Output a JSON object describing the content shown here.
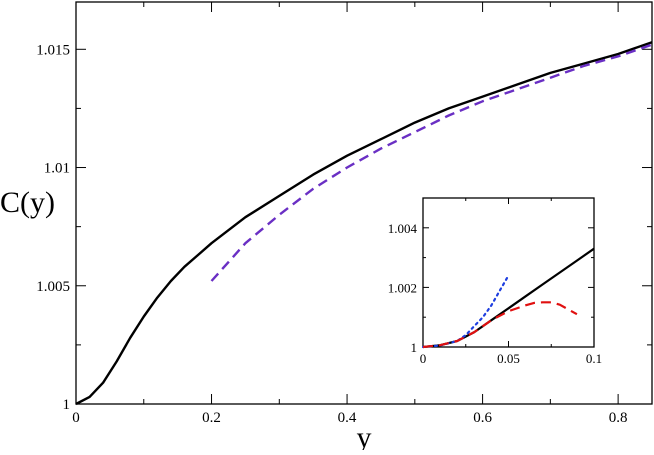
{
  "chart_data": [
    {
      "type": "line",
      "panel": "main",
      "xlabel": "y",
      "ylabel": "C(y)",
      "xlim": [
        0,
        0.85
      ],
      "ylim": [
        1,
        1.017
      ],
      "xticks": [
        0,
        0.2,
        0.4,
        0.6,
        0.8
      ],
      "xtick_labels": [
        "0",
        "0.2",
        "0.4",
        "0.6",
        "0.8"
      ],
      "yticks": [
        1,
        1.005,
        1.01,
        1.015
      ],
      "ytick_labels": [
        "1",
        "1.005",
        "1.01",
        "1.015"
      ],
      "grid": false,
      "series": [
        {
          "style": "solid",
          "color": "#000000",
          "x": [
            0,
            0.02,
            0.04,
            0.06,
            0.08,
            0.1,
            0.12,
            0.14,
            0.16,
            0.18,
            0.2,
            0.25,
            0.3,
            0.35,
            0.4,
            0.45,
            0.5,
            0.55,
            0.6,
            0.65,
            0.7,
            0.75,
            0.8,
            0.85
          ],
          "y": [
            1,
            1.0003,
            1.0009,
            1.0018,
            1.0028,
            1.0037,
            1.0045,
            1.0052,
            1.0058,
            1.0063,
            1.0068,
            1.0079,
            1.0088,
            1.0097,
            1.0105,
            1.0112,
            1.0119,
            1.0125,
            1.013,
            1.0135,
            1.014,
            1.0144,
            1.0148,
            1.0153
          ]
        },
        {
          "style": "dashed",
          "color": "#6a2fc4",
          "x": [
            0.2,
            0.25,
            0.3,
            0.35,
            0.4,
            0.45,
            0.5,
            0.55,
            0.6,
            0.65,
            0.7,
            0.75,
            0.8,
            0.85
          ],
          "y": [
            1.0052,
            1.0068,
            1.008,
            1.0091,
            1.01,
            1.0108,
            1.0115,
            1.0122,
            1.0128,
            1.0133,
            1.0138,
            1.0143,
            1.0147,
            1.0152
          ]
        }
      ]
    },
    {
      "type": "line",
      "panel": "inset",
      "xlim": [
        0,
        0.1
      ],
      "ylim": [
        1,
        1.005
      ],
      "xticks": [
        0,
        0.05,
        0.1
      ],
      "xtick_labels": [
        "0",
        "0.05",
        "0.1"
      ],
      "yticks": [
        1,
        1.002,
        1.004
      ],
      "ytick_labels": [
        "1",
        "1.002",
        "1.004"
      ],
      "grid": false,
      "series": [
        {
          "style": "solid",
          "color": "#000000",
          "x": [
            0,
            0.01,
            0.02,
            0.03,
            0.04,
            0.05,
            0.06,
            0.07,
            0.08,
            0.09,
            0.1
          ],
          "y": [
            1,
            1.00006,
            1.0002,
            1.0005,
            1.0009,
            1.0013,
            1.0017,
            1.0021,
            1.0025,
            1.0029,
            1.0033
          ]
        },
        {
          "style": "dotted",
          "color": "#1f3fe0",
          "x": [
            0,
            0.01,
            0.02,
            0.025,
            0.03,
            0.035,
            0.04,
            0.045,
            0.05
          ],
          "y": [
            1,
            1.00005,
            1.0002,
            1.0004,
            1.0007,
            1.001,
            1.0014,
            1.0019,
            1.0024
          ]
        },
        {
          "style": "dashed",
          "color": "#e01010",
          "x": [
            0,
            0.01,
            0.02,
            0.03,
            0.04,
            0.05,
            0.06,
            0.065,
            0.07,
            0.075,
            0.08,
            0.09
          ],
          "y": [
            1,
            1.00006,
            1.0002,
            1.0005,
            1.0009,
            1.0012,
            1.0014,
            1.00148,
            1.0015,
            1.0015,
            1.00142,
            1.0011
          ]
        }
      ]
    }
  ]
}
